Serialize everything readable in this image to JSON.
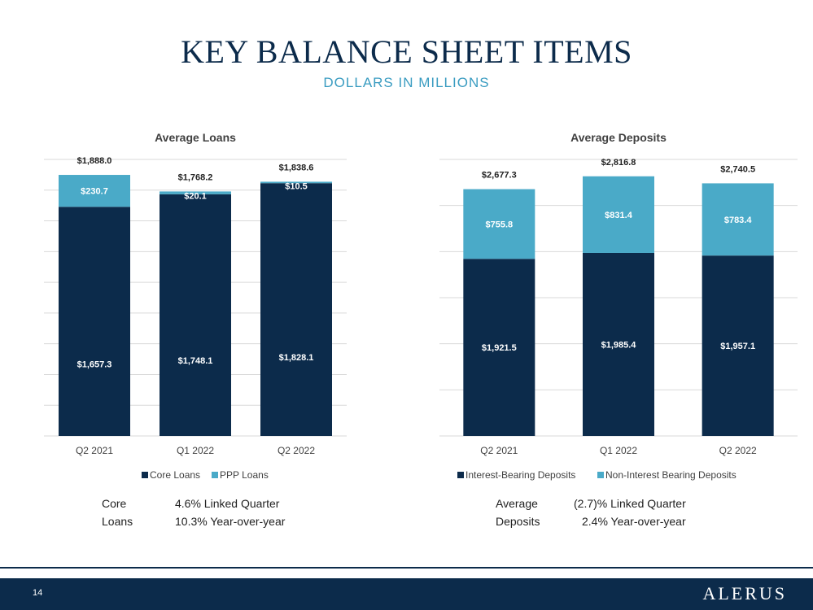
{
  "header": {
    "title": "KEY BALANCE SHEET ITEMS",
    "subtitle": "DOLLARS IN MILLIONS"
  },
  "colors": {
    "dark": "#0c2b4b",
    "light": "#4aaac8",
    "title": "#0c2b4b",
    "accent": "#3a9cc1"
  },
  "chart_data": [
    {
      "type": "bar",
      "stacked": true,
      "title": "Average Loans",
      "categories": [
        "Q2 2021",
        "Q1 2022",
        "Q2 2022"
      ],
      "series": [
        {
          "name": "Core Loans",
          "values": [
            1657.3,
            1748.1,
            1828.1
          ],
          "labels": [
            "$1,657.3",
            "$1,748.1",
            "$1,828.1"
          ]
        },
        {
          "name": "PPP Loans",
          "values": [
            230.7,
            20.1,
            10.5
          ],
          "labels": [
            "$230.7",
            "$20.1",
            "$10.5"
          ]
        }
      ],
      "totals": [
        "$1,888.0",
        "$1,768.2",
        "$1,838.6"
      ],
      "ylim": [
        0,
        2000
      ],
      "grid": true,
      "legend_position": "bottom"
    },
    {
      "type": "bar",
      "stacked": true,
      "title": "Average Deposits",
      "categories": [
        "Q2 2021",
        "Q1 2022",
        "Q2 2022"
      ],
      "series": [
        {
          "name": "Interest-Bearing Deposits",
          "values": [
            1921.5,
            1985.4,
            1957.1
          ],
          "labels": [
            "$1,921.5",
            "$1,985.4",
            "$1,957.1"
          ]
        },
        {
          "name": "Non-Interest Bearing Deposits",
          "values": [
            755.8,
            831.4,
            783.4
          ],
          "labels": [
            "$755.8",
            "$831.4",
            "$783.4"
          ]
        }
      ],
      "totals": [
        "$2,677.3",
        "$2,816.8",
        "$2,740.5"
      ],
      "ylim": [
        0,
        3000
      ],
      "grid": true,
      "legend_position": "bottom"
    }
  ],
  "stats": {
    "loans": {
      "label_line1": "Core",
      "label_line2": "Loans",
      "value_line1": "4.6% Linked Quarter",
      "value_line2": "10.3% Year-over-year"
    },
    "deposits": {
      "label_line1": "Average",
      "label_line2": "Deposits",
      "value_line1": "(2.7)% Linked Quarter",
      "value_line2": "2.4% Year-over-year"
    }
  },
  "footer": {
    "page_number": "14",
    "logo_text": "ALERUS"
  }
}
